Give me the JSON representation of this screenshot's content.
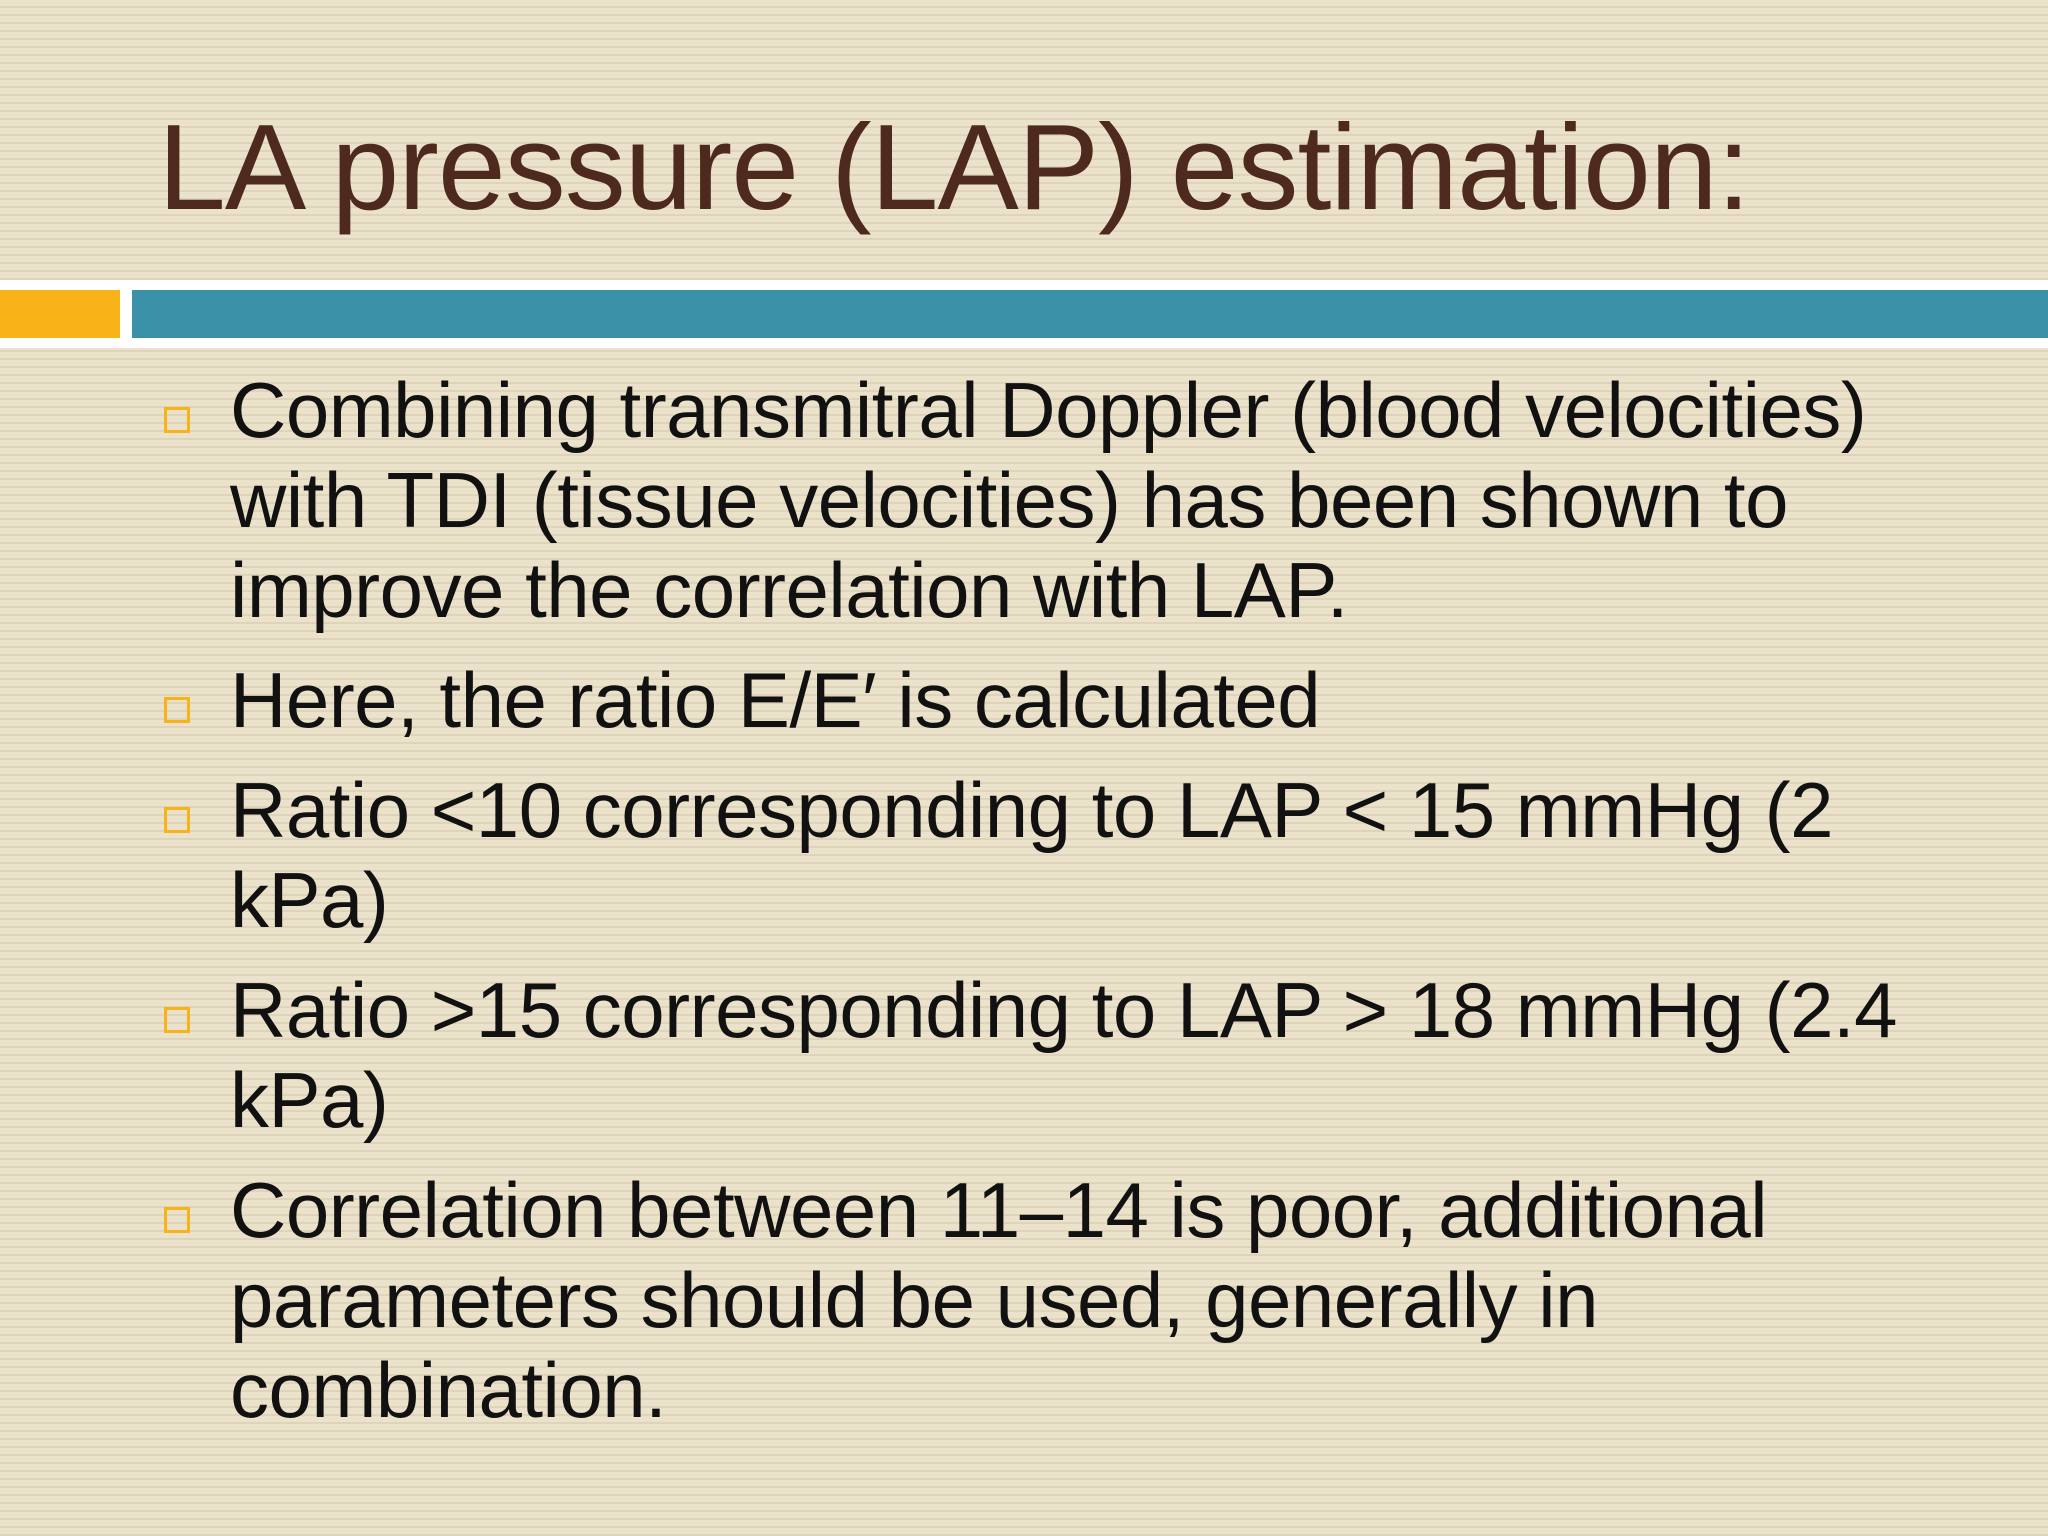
{
  "slide": {
    "title": "LA pressure (LAP) estimation:",
    "accent_colors": {
      "orange": "#f7b318",
      "teal": "#3b91a8",
      "title_color": "#4e2a1e"
    },
    "bullet_icon": "hollow-square-bullet-icon",
    "bullets": [
      {
        "text": "Combining transmitral Doppler (blood velocities) with TDI (tissue velocities) has been shown to improve the correlation with LAP."
      },
      {
        "text": "Here, the ratio E/E′ is calculated"
      },
      {
        "text": "Ratio <10 corresponding to LAP < 15 mmHg (2 kPa)"
      },
      {
        "text": "Ratio >15 corresponding to LAP > 18 mmHg (2.4 kPa)"
      },
      {
        "text": "Correlation between 11–14 is poor, additional parameters should be used, generally in combination."
      }
    ]
  }
}
